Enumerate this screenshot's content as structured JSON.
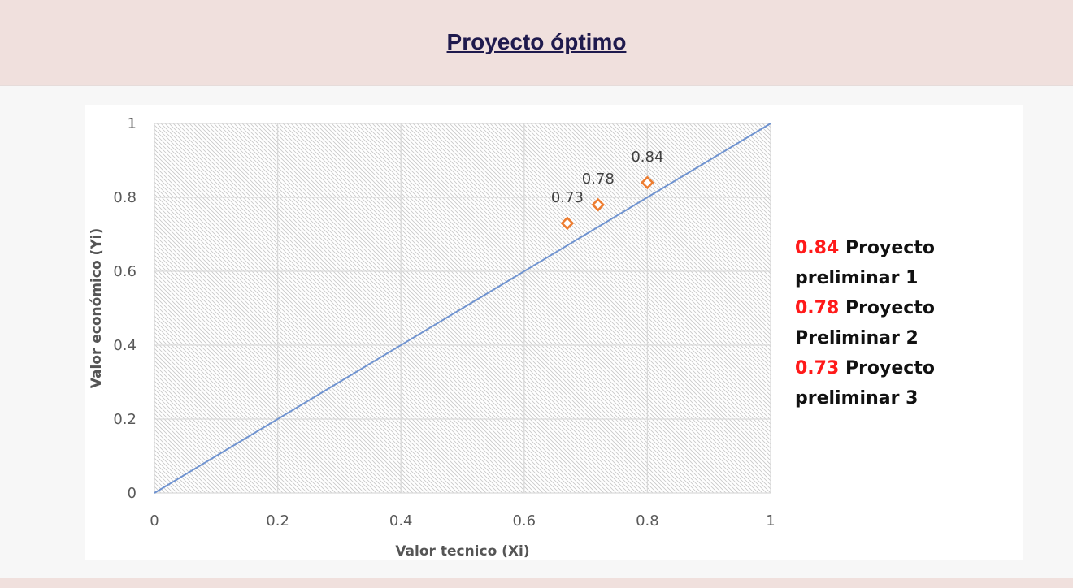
{
  "page": {
    "title": "Proyecto óptimo"
  },
  "chart_data": {
    "type": "scatter",
    "xlabel": "Valor  tecnico (Xi)",
    "ylabel": "Valor económico (Yi)",
    "xlim": [
      0,
      1
    ],
    "ylim": [
      0,
      1
    ],
    "x_ticks": [
      "0",
      "0.2",
      "0.4",
      "0.6",
      "0.8",
      "1"
    ],
    "y_ticks": [
      "0",
      "0.2",
      "0.4",
      "0.6",
      "0.8",
      "1"
    ],
    "grid": true,
    "plot_background": "diagonal hatch",
    "reference_line": {
      "x": [
        0,
        1
      ],
      "y": [
        0,
        1
      ],
      "color": "#6f93d0"
    },
    "series": [
      {
        "marker": "diamond",
        "color": "#ed7d31",
        "points": [
          {
            "x": 0.67,
            "y": 0.73,
            "label": "0.73"
          },
          {
            "x": 0.72,
            "y": 0.78,
            "label": "0.78"
          },
          {
            "x": 0.8,
            "y": 0.84,
            "label": "0.84"
          }
        ]
      }
    ],
    "legend_position": "right",
    "legend": [
      {
        "value": "0.84",
        "text": "Proyecto preliminar 1"
      },
      {
        "value": "0.78",
        "text": "Proyecto Preliminar 2"
      },
      {
        "value": "0.73",
        "text": "Proyecto preliminar 3"
      }
    ]
  },
  "colors": {
    "header_background": "#f0e0dd",
    "title_color": "#1f1a4d",
    "legend_value_color": "#ff1a1a",
    "marker_color": "#ed7d31",
    "line_color": "#6f93d0"
  }
}
